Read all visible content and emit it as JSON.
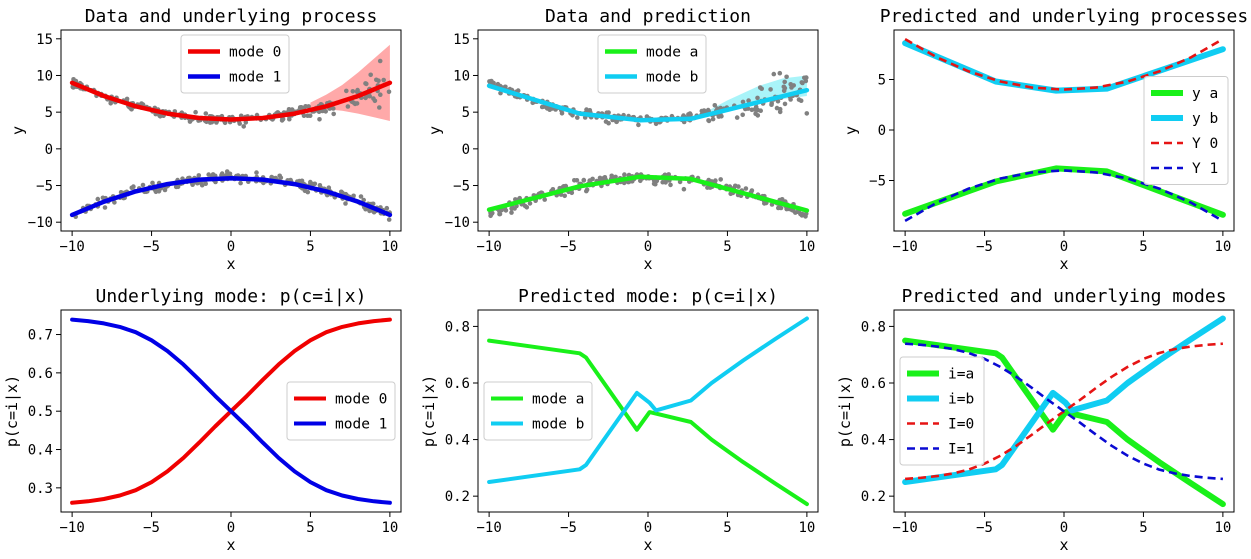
{
  "chart_data": [
    {
      "id": "p1",
      "type": "scatter",
      "title": "Data and underlying process",
      "xlabel": "x",
      "ylabel": "y",
      "xlim": [
        -10.7,
        10.7
      ],
      "ylim": [
        -11.2,
        16.2
      ],
      "xticks": [
        -10,
        -5,
        0,
        5,
        10
      ],
      "yticks": [
        -10,
        -5,
        0,
        5,
        10,
        15
      ],
      "legend_position": "top-center",
      "bands": [
        {
          "color": "#ff9a9a",
          "x": [
            5,
            6,
            7,
            8,
            9,
            10
          ],
          "low": [
            5.6,
            5.4,
            5.2,
            4.8,
            4.3,
            3.8
          ],
          "high": [
            6.3,
            7.4,
            8.7,
            10.4,
            12.3,
            14.2
          ]
        }
      ],
      "scatter_groups": [
        {
          "color": "#808080",
          "x_range": [
            -10,
            10
          ],
          "curve": "0.05*x*x+4",
          "spread_left": 0.45,
          "spread_right": 2.6
        },
        {
          "color": "#808080",
          "x_range": [
            -10,
            10
          ],
          "curve": "-0.05*x*x-4",
          "spread_left": 0.55,
          "spread_right": 0.55
        }
      ],
      "series": [
        {
          "name": "mode 0",
          "color": "#f00000",
          "width": 4.5,
          "x": [
            -10,
            -8,
            -6,
            -4,
            -2,
            0,
            2,
            4,
            6,
            8,
            10
          ],
          "y": [
            9,
            7.2,
            5.8,
            4.8,
            4.2,
            4,
            4.2,
            4.8,
            5.8,
            7.2,
            9
          ]
        },
        {
          "name": "mode 1",
          "color": "#0000e6",
          "width": 4.5,
          "x": [
            -10,
            -8,
            -6,
            -4,
            -2,
            0,
            2,
            4,
            6,
            8,
            10
          ],
          "y": [
            -9,
            -7.2,
            -5.8,
            -4.8,
            -4.2,
            -4,
            -4.2,
            -4.8,
            -5.8,
            -7.2,
            -9
          ]
        }
      ]
    },
    {
      "id": "p2",
      "type": "scatter",
      "title": "Data and prediction",
      "xlabel": "x",
      "ylabel": "y",
      "xlim": [
        -10.7,
        10.7
      ],
      "ylim": [
        -11.2,
        16.2
      ],
      "xticks": [
        -10,
        -5,
        0,
        5,
        10
      ],
      "yticks": [
        -10,
        -5,
        0,
        5,
        10,
        15
      ],
      "legend_position": "top-center",
      "bands": [
        {
          "color": "#9af2f8",
          "x": [
            3,
            5,
            7,
            8.5,
            10
          ],
          "low": [
            4.0,
            5.0,
            6.2,
            6.8,
            7.2
          ],
          "high": [
            4.3,
            6.6,
            8.6,
            9.6,
            10.0
          ]
        }
      ],
      "scatter_groups": [
        {
          "color": "#808080",
          "x_range": [
            -10,
            10
          ],
          "curve": "0.05*x*x+4",
          "spread_left": 0.45,
          "spread_right": 2.6
        },
        {
          "color": "#808080",
          "x_range": [
            -10,
            10
          ],
          "curve": "-0.05*x*x-4",
          "spread_left": 0.55,
          "spread_right": 0.55
        }
      ],
      "series": [
        {
          "name": "mode a",
          "color": "#19f019",
          "width": 4.5,
          "x": [
            -10,
            -4.3,
            -0.5,
            2.7,
            10
          ],
          "y": [
            -8.3,
            -5.1,
            -3.8,
            -4.1,
            -8.4
          ]
        },
        {
          "name": "mode b",
          "color": "#10cdf2",
          "width": 4.5,
          "x": [
            -10,
            -4.3,
            -0.5,
            2.7,
            10
          ],
          "y": [
            8.6,
            4.8,
            3.9,
            4.1,
            8.0
          ]
        }
      ]
    },
    {
      "id": "p3",
      "type": "line",
      "title": "Predicted and underlying processes",
      "xlabel": "x",
      "ylabel": "y",
      "xlim": [
        -10.7,
        10.7
      ],
      "ylim": [
        -10.0,
        9.9
      ],
      "xticks": [
        -10,
        -5,
        0,
        5,
        10
      ],
      "yticks": [
        -5,
        0,
        5
      ],
      "legend_position": "center-right",
      "series": [
        {
          "name": "y a",
          "color": "#19f019",
          "width": 6,
          "dash": "",
          "x": [
            -10,
            -4.3,
            -0.5,
            2.7,
            10
          ],
          "y": [
            -8.3,
            -5.1,
            -3.8,
            -4.1,
            -8.4
          ]
        },
        {
          "name": "y b",
          "color": "#10cdf2",
          "width": 6,
          "dash": "",
          "x": [
            -10,
            -4.3,
            -0.5,
            2.7,
            10
          ],
          "y": [
            8.6,
            4.8,
            3.9,
            4.1,
            8.0
          ]
        },
        {
          "name": "Y 0",
          "color": "#e61414",
          "width": 2.6,
          "dash": "8,5",
          "x": [
            -10,
            -8,
            -6,
            -4,
            -2,
            0,
            2,
            4,
            6,
            8,
            10
          ],
          "y": [
            9,
            7.2,
            5.8,
            4.8,
            4.2,
            4,
            4.2,
            4.8,
            5.8,
            7.2,
            9
          ]
        },
        {
          "name": "Y 1",
          "color": "#0a0ad2",
          "width": 2.6,
          "dash": "8,5",
          "x": [
            -10,
            -8,
            -6,
            -4,
            -2,
            0,
            2,
            4,
            6,
            8,
            10
          ],
          "y": [
            -9,
            -7.2,
            -5.8,
            -4.8,
            -4.2,
            -4,
            -4.2,
            -4.8,
            -5.8,
            -7.2,
            -9
          ]
        }
      ]
    },
    {
      "id": "p4",
      "type": "line",
      "title": "Underlying mode: p(c=i|x)",
      "xlabel": "x",
      "ylabel": "p(c=i|x)",
      "xlim": [
        -10.7,
        10.7
      ],
      "ylim": [
        0.237,
        0.764
      ],
      "xticks": [
        -10,
        -5,
        0,
        5,
        10
      ],
      "yticks": [
        0.3,
        0.4,
        0.5,
        0.6,
        0.7
      ],
      "legend_position": "center-right",
      "series": [
        {
          "name": "mode 0",
          "color": "#f00000",
          "width": 4,
          "dash": "",
          "x": [
            -10,
            -9,
            -8,
            -7,
            -6,
            -5,
            -4,
            -3,
            -2,
            -1,
            0,
            1,
            2,
            3,
            4,
            5,
            6,
            7,
            8,
            9,
            10
          ],
          "y": [
            0.261,
            0.265,
            0.271,
            0.28,
            0.294,
            0.315,
            0.343,
            0.378,
            0.418,
            0.46,
            0.5,
            0.54,
            0.582,
            0.622,
            0.657,
            0.685,
            0.706,
            0.72,
            0.729,
            0.735,
            0.739
          ]
        },
        {
          "name": "mode 1",
          "color": "#0000e6",
          "width": 4,
          "dash": "",
          "x": [
            -10,
            -9,
            -8,
            -7,
            -6,
            -5,
            -4,
            -3,
            -2,
            -1,
            0,
            1,
            2,
            3,
            4,
            5,
            6,
            7,
            8,
            9,
            10
          ],
          "y": [
            0.739,
            0.735,
            0.729,
            0.72,
            0.706,
            0.685,
            0.657,
            0.622,
            0.582,
            0.54,
            0.5,
            0.46,
            0.418,
            0.378,
            0.343,
            0.315,
            0.294,
            0.28,
            0.271,
            0.265,
            0.261
          ]
        }
      ]
    },
    {
      "id": "p5",
      "type": "line",
      "title": "Predicted mode: p(c=i|x)",
      "xlabel": "x",
      "ylabel": "p(c=i|x)",
      "xlim": [
        -10.7,
        10.7
      ],
      "ylim": [
        0.144,
        0.858
      ],
      "xticks": [
        -10,
        -5,
        0,
        5,
        10
      ],
      "yticks": [
        0.2,
        0.4,
        0.6,
        0.8
      ],
      "legend_position": "center-left",
      "series": [
        {
          "name": "mode a",
          "color": "#19f019",
          "width": 4,
          "dash": "",
          "x": [
            -10,
            -4.3,
            -3.9,
            -0.7,
            0.1,
            2.7,
            4,
            6,
            8,
            10
          ],
          "y": [
            0.75,
            0.705,
            0.69,
            0.435,
            0.497,
            0.462,
            0.4,
            0.32,
            0.245,
            0.172
          ]
        },
        {
          "name": "mode b",
          "color": "#10cdf2",
          "width": 4,
          "dash": "",
          "x": [
            -10,
            -4.3,
            -3.9,
            -0.7,
            0.1,
            0.5,
            2.7,
            4,
            6,
            8,
            10
          ],
          "y": [
            0.25,
            0.295,
            0.31,
            0.565,
            0.53,
            0.503,
            0.538,
            0.6,
            0.68,
            0.755,
            0.828
          ]
        }
      ]
    },
    {
      "id": "p6",
      "type": "line",
      "title": "Predicted and underlying modes",
      "xlabel": "x",
      "ylabel": "p(c=i|x)",
      "xlim": [
        -10.7,
        10.7
      ],
      "ylim": [
        0.144,
        0.858
      ],
      "xticks": [
        -10,
        -5,
        0,
        5,
        10
      ],
      "yticks": [
        0.2,
        0.4,
        0.6,
        0.8
      ],
      "legend_position": "center-left",
      "series": [
        {
          "name": "i=a",
          "color": "#19f019",
          "width": 6,
          "dash": "",
          "x": [
            -10,
            -4.3,
            -3.9,
            -0.7,
            0.1,
            2.7,
            4,
            6,
            8,
            10
          ],
          "y": [
            0.75,
            0.705,
            0.69,
            0.435,
            0.497,
            0.462,
            0.4,
            0.32,
            0.245,
            0.172
          ]
        },
        {
          "name": "i=b",
          "color": "#10cdf2",
          "width": 6,
          "dash": "",
          "x": [
            -10,
            -4.3,
            -3.9,
            -0.7,
            0.1,
            0.5,
            2.7,
            4,
            6,
            8,
            10
          ],
          "y": [
            0.25,
            0.295,
            0.31,
            0.565,
            0.53,
            0.503,
            0.538,
            0.6,
            0.68,
            0.755,
            0.828
          ]
        },
        {
          "name": "I=0",
          "color": "#e61414",
          "width": 2.6,
          "dash": "8,5",
          "x": [
            -10,
            -9,
            -8,
            -7,
            -6,
            -5,
            -4,
            -3,
            -2,
            -1,
            0,
            1,
            2,
            3,
            4,
            5,
            6,
            7,
            8,
            9,
            10
          ],
          "y": [
            0.261,
            0.265,
            0.271,
            0.28,
            0.294,
            0.315,
            0.343,
            0.378,
            0.418,
            0.46,
            0.5,
            0.54,
            0.582,
            0.622,
            0.657,
            0.685,
            0.706,
            0.72,
            0.729,
            0.735,
            0.739
          ]
        },
        {
          "name": "I=1",
          "color": "#0a0ad2",
          "width": 2.6,
          "dash": "8,5",
          "x": [
            -10,
            -9,
            -8,
            -7,
            -6,
            -5,
            -4,
            -3,
            -2,
            -1,
            0,
            1,
            2,
            3,
            4,
            5,
            6,
            7,
            8,
            9,
            10
          ],
          "y": [
            0.739,
            0.735,
            0.729,
            0.72,
            0.706,
            0.685,
            0.657,
            0.622,
            0.582,
            0.54,
            0.5,
            0.46,
            0.418,
            0.378,
            0.343,
            0.315,
            0.294,
            0.28,
            0.271,
            0.265,
            0.261
          ]
        }
      ]
    }
  ]
}
